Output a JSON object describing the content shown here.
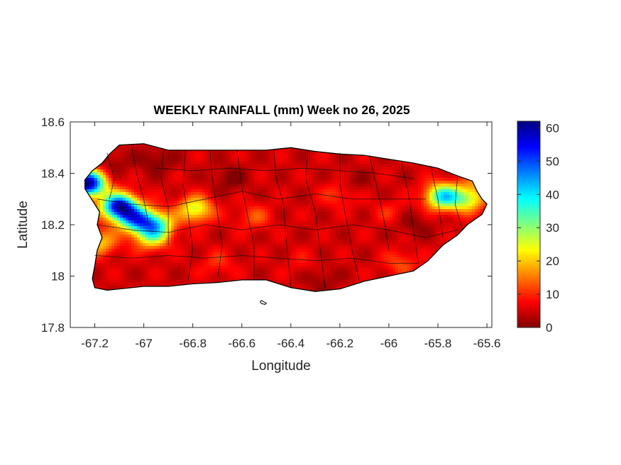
{
  "title": "WEEKLY RAINFALL (mm) Week no 26, 2025",
  "xaxis": {
    "label": "Longitude",
    "range": [
      -67.3,
      -65.58
    ],
    "ticks": [
      -67.2,
      -67,
      -66.8,
      -66.6,
      -66.4,
      -66.2,
      -66,
      -65.8,
      -65.6
    ],
    "tick_labels": [
      "-67.2",
      "-67",
      "-66.8",
      "-66.6",
      "-66.4",
      "-66.2",
      "-66",
      "-65.8",
      "-65.6"
    ]
  },
  "yaxis": {
    "label": "Latitude",
    "range": [
      17.8,
      18.6
    ],
    "ticks": [
      17.8,
      18,
      18.2,
      18.4,
      18.6
    ],
    "tick_labels": [
      "17.8",
      "18",
      "18.2",
      "18.4",
      "18.6"
    ]
  },
  "colorbar": {
    "range": [
      0,
      62
    ],
    "ticks": [
      0,
      10,
      20,
      30,
      40,
      50,
      60
    ],
    "tick_labels": [
      "0",
      "10",
      "20",
      "30",
      "40",
      "50",
      "60"
    ],
    "colormap": "jet (reversed: dark red = 0, dark blue = max)"
  },
  "chart_data": {
    "type": "heatmap",
    "title": "WEEKLY RAINFALL (mm) Week no 26, 2025",
    "xlabel": "Longitude",
    "ylabel": "Latitude",
    "xlim": [
      -67.3,
      -65.58
    ],
    "ylim": [
      17.8,
      18.6
    ],
    "value_range": [
      0,
      62
    ],
    "units": "mm",
    "base_value": 5,
    "rain_cells": [
      {
        "lon": -67.23,
        "lat": 18.36,
        "value": 62
      },
      {
        "lon": -67.1,
        "lat": 18.27,
        "value": 58
      },
      {
        "lon": -67.03,
        "lat": 18.22,
        "value": 40
      },
      {
        "lon": -66.95,
        "lat": 18.2,
        "value": 32
      },
      {
        "lon": -66.79,
        "lat": 18.26,
        "value": 26
      },
      {
        "lon": -67.18,
        "lat": 18.13,
        "value": 20
      },
      {
        "lon": -66.97,
        "lat": 18.15,
        "value": 22
      },
      {
        "lon": -66.55,
        "lat": 18.23,
        "value": 12
      },
      {
        "lon": -66.2,
        "lat": 18.32,
        "value": 12
      },
      {
        "lon": -66.0,
        "lat": 18.25,
        "value": 9
      },
      {
        "lon": -65.78,
        "lat": 18.31,
        "value": 38
      },
      {
        "lon": -65.68,
        "lat": 18.3,
        "value": 26
      },
      {
        "lon": -65.6,
        "lat": 18.38,
        "value": 20
      },
      {
        "lon": -66.7,
        "lat": 18.05,
        "value": 10
      },
      {
        "lon": -66.35,
        "lat": 18.05,
        "value": 8
      },
      {
        "lon": -65.95,
        "lat": 18.05,
        "value": 12
      }
    ],
    "dry_cells": [
      {
        "lon": -66.95,
        "lat": 18.45,
        "value": 0
      },
      {
        "lon": -66.65,
        "lat": 18.38,
        "value": 0
      },
      {
        "lon": -66.15,
        "lat": 18.36,
        "value": 1
      },
      {
        "lon": -66.28,
        "lat": 17.99,
        "value": 1
      },
      {
        "lon": -65.9,
        "lat": 18.2,
        "value": 1
      },
      {
        "lon": -67.13,
        "lat": 18.44,
        "value": 1
      }
    ]
  }
}
